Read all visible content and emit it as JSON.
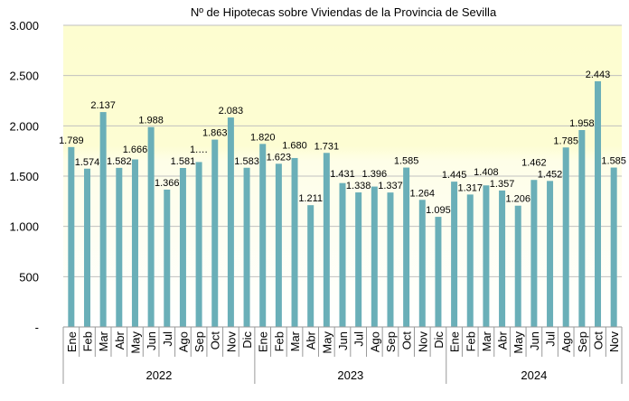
{
  "chart_data": {
    "type": "bar",
    "title": "Nº de Hipotecas sobre Viviendas de la Provincia de Sevilla",
    "xlabel": "",
    "ylabel": "",
    "ylim": [
      0,
      3000
    ],
    "yticks": [
      0,
      500,
      1000,
      1500,
      2000,
      2500,
      3000
    ],
    "ytick_labels": [
      "-",
      "500",
      "1.000",
      "1.500",
      "2.000",
      "2.500",
      "3.000"
    ],
    "grid": true,
    "legend": "none",
    "bar_color": "#6aafb8",
    "groups": [
      {
        "year": "2022",
        "categories": [
          "Ene",
          "Feb",
          "Mar",
          "Abr",
          "May",
          "Jun",
          "Jul",
          "Ago",
          "Sep",
          "Oct",
          "Nov",
          "Dic"
        ],
        "values": [
          1789,
          1574,
          2137,
          1582,
          1666,
          1988,
          1366,
          1581,
          1640,
          1863,
          2083,
          1583
        ],
        "labels": [
          "1.789",
          "1.574",
          "2.137",
          "1.582",
          "1.666",
          "1.988",
          "1.366",
          "1.581",
          "1.…",
          "1.863",
          "2.083",
          "1.583"
        ]
      },
      {
        "year": "2023",
        "categories": [
          "Ene",
          "Feb",
          "Mar",
          "Abr",
          "May",
          "Jun",
          "Jul",
          "Ago",
          "Sep",
          "Oct",
          "Nov",
          "Dic"
        ],
        "values": [
          1820,
          1623,
          1680,
          1211,
          1731,
          1431,
          1338,
          1396,
          1337,
          1585,
          1264,
          1095
        ],
        "labels": [
          "1.820",
          "1.623",
          "1.680",
          "1.211",
          "1.731",
          "1.431",
          "1.338",
          "1.396",
          "1.337",
          "1.585",
          "1.264",
          "1.095"
        ]
      },
      {
        "year": "2024",
        "categories": [
          "Ene",
          "Feb",
          "Mar",
          "Abr",
          "May",
          "Jun",
          "Jul",
          "Ago",
          "Sep",
          "Oct",
          "Nov"
        ],
        "values": [
          1445,
          1317,
          1408,
          1357,
          1206,
          1462,
          1452,
          1785,
          1958,
          2443,
          1585
        ],
        "labels": [
          "1.445",
          "1.317",
          "1.408",
          "1.357",
          "1.206",
          "1.462",
          "1.452",
          "1.785",
          "1.958",
          "2.443",
          "1.585"
        ]
      }
    ]
  }
}
